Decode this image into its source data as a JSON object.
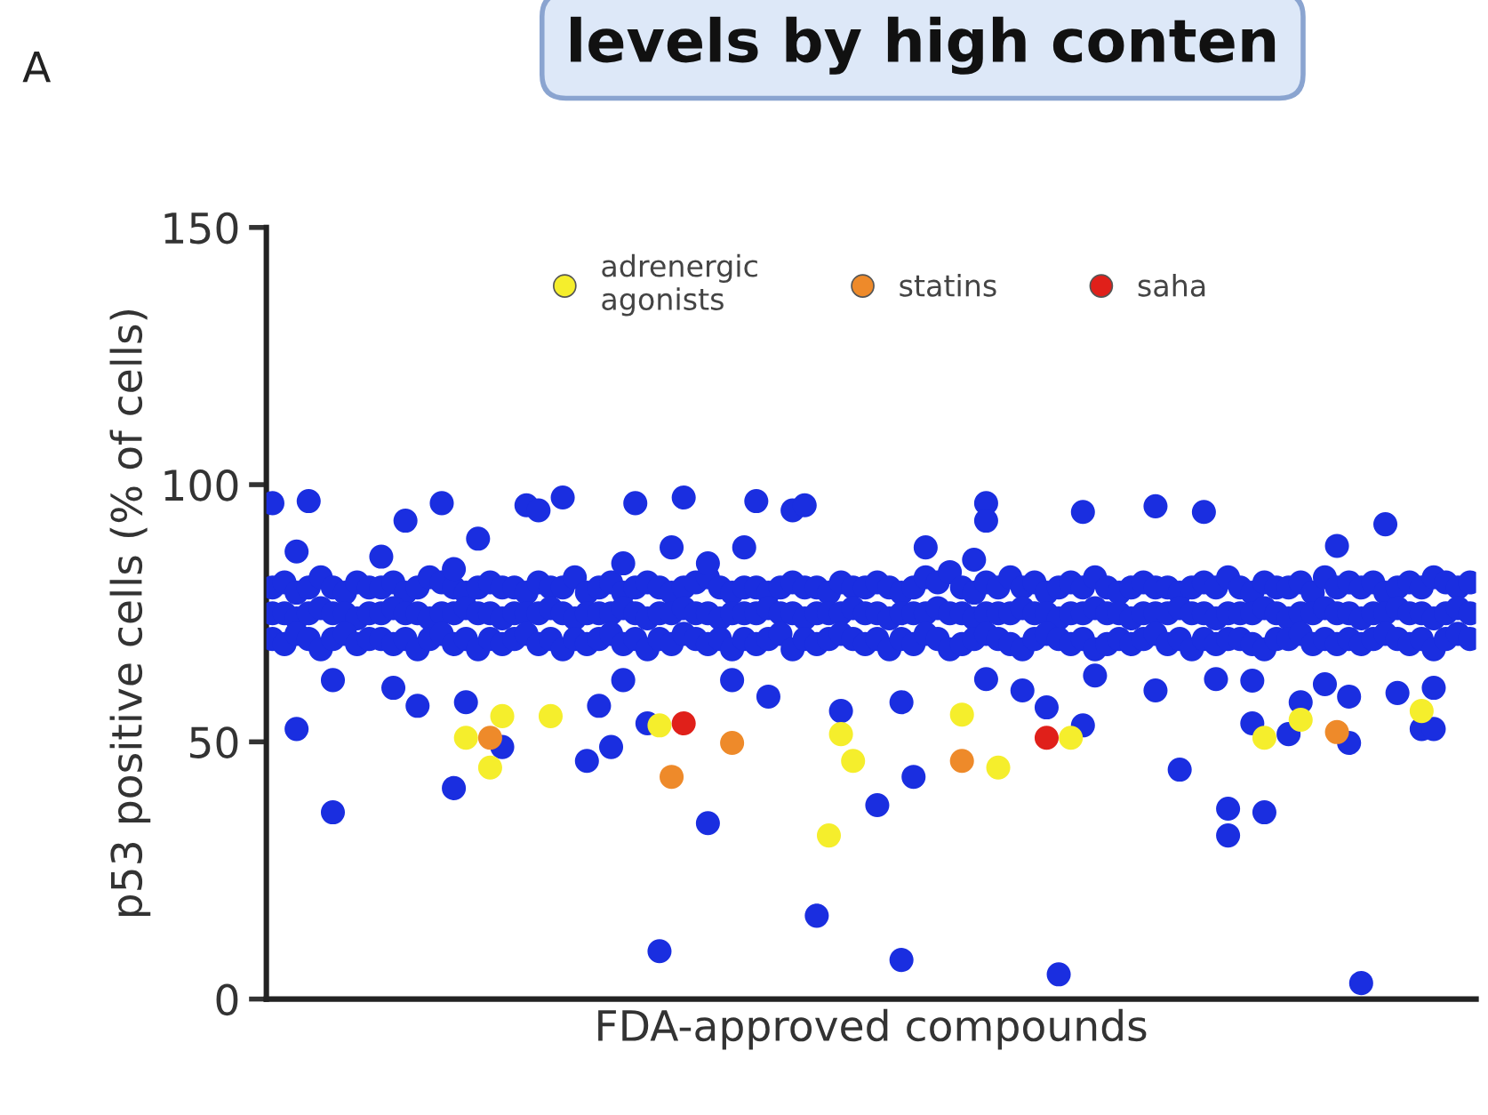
{
  "chart_data": {
    "type": "scatter",
    "title": "levels by high conten",
    "annotations": [
      "A"
    ],
    "xlabel": "FDA-approved compounds",
    "ylabel": "p53 positive cells (% of cells)",
    "categories": [
      null,
      null,
      null,
      null,
      null,
      null,
      null,
      null,
      null,
      null,
      null,
      null,
      null,
      null,
      null,
      null,
      null,
      null,
      null,
      null,
      null,
      null,
      null,
      null,
      null,
      null,
      null,
      null,
      null,
      null,
      null,
      null,
      null,
      null,
      null,
      null,
      null,
      null,
      null,
      null,
      null,
      null,
      null,
      null,
      null,
      null,
      null,
      null,
      null,
      null,
      null,
      null,
      null,
      null,
      null,
      null,
      null,
      null,
      null,
      null,
      null,
      null,
      null,
      null,
      null,
      null,
      null,
      null,
      null,
      null,
      null,
      null,
      null,
      null,
      null,
      null,
      null,
      null,
      null,
      null,
      null,
      null,
      null,
      null,
      null,
      null,
      null,
      null,
      null,
      null,
      null,
      null,
      null,
      null,
      null,
      null,
      null,
      null,
      null,
      null
    ],
    "ylim": [
      0,
      150
    ],
    "yticks": [
      0,
      50,
      100,
      150
    ],
    "tick_labels": "y",
    "grid": false,
    "legend": "top",
    "marker": "circle",
    "series": [
      {
        "color": "#1a2ee0",
        "values": [
          80,
          81,
          79,
          80,
          82,
          80,
          79,
          81,
          80,
          80,
          81,
          79,
          80,
          82,
          81,
          80,
          79,
          80,
          81,
          80,
          80,
          79,
          81,
          80,
          80,
          82,
          79,
          80,
          81,
          79,
          80,
          81,
          80,
          79,
          80,
          81,
          82,
          80,
          79,
          80,
          80,
          79,
          80,
          81,
          80,
          80,
          79,
          81,
          80,
          80,
          81,
          80,
          79,
          80,
          82,
          81,
          83,
          80,
          79,
          81,
          80,
          82,
          80,
          81,
          79,
          80,
          81,
          80,
          82,
          80,
          79,
          80,
          81,
          80,
          80,
          79,
          80,
          81,
          80,
          82,
          80,
          79,
          81,
          80,
          80,
          81,
          79,
          82,
          80,
          81,
          80,
          81,
          79,
          80,
          81,
          80,
          82,
          81,
          80,
          81
        ]
      },
      {
        "color": "#1a2ee0",
        "values": [
          75,
          75,
          74,
          75,
          76,
          75,
          75,
          74,
          75,
          75,
          76,
          75,
          75,
          74,
          75,
          75,
          76,
          75,
          75,
          74,
          75,
          75,
          75,
          76,
          75,
          74,
          75,
          75,
          75,
          76,
          75,
          74,
          75,
          75,
          76,
          75,
          75,
          74,
          75,
          75,
          75,
          76,
          75,
          75,
          74,
          75,
          75,
          75,
          76,
          75,
          75,
          74,
          75,
          75,
          75,
          76,
          75,
          75,
          74,
          75,
          75,
          75,
          76,
          75,
          75,
          74,
          75,
          75,
          76,
          75,
          75,
          74,
          75,
          75,
          75,
          76,
          75,
          75,
          74,
          75,
          75,
          75,
          76,
          75,
          74,
          75,
          75,
          76,
          75,
          75,
          74,
          75,
          75,
          76,
          75,
          75,
          74,
          75,
          76,
          75
        ]
      },
      {
        "color": "#1a2ee0",
        "values": [
          70,
          69,
          71,
          70,
          68,
          70,
          71,
          69,
          70,
          70,
          69,
          70,
          68,
          70,
          71,
          69,
          70,
          68,
          70,
          69,
          70,
          71,
          69,
          70,
          68,
          70,
          69,
          70,
          71,
          69,
          70,
          68,
          70,
          69,
          71,
          70,
          69,
          70,
          68,
          70,
          69,
          70,
          71,
          68,
          70,
          69,
          70,
          71,
          70,
          69,
          70,
          68,
          70,
          69,
          71,
          70,
          68,
          69,
          70,
          71,
          70,
          69,
          68,
          70,
          71,
          70,
          69,
          70,
          68,
          69,
          70,
          69,
          70,
          71,
          69,
          70,
          68,
          70,
          69,
          70,
          70,
          69,
          68,
          70,
          70,
          71,
          69,
          70,
          69,
          70,
          69,
          70,
          71,
          70,
          69,
          70,
          68,
          70,
          71,
          70
        ]
      },
      {
        "color": "#1a2ee0",
        "values": [
          96.4,
          null,
          87,
          96.8,
          null,
          null,
          null,
          null,
          null,
          86,
          null,
          93,
          null,
          null,
          96.4,
          83.6,
          null,
          89.5,
          null,
          null,
          null,
          96,
          95,
          null,
          97.5,
          null,
          null,
          null,
          null,
          84.7,
          96.4,
          null,
          null,
          87.8,
          97.5,
          null,
          84.7,
          null,
          null,
          87.8,
          96.8,
          null,
          null,
          95,
          96,
          null,
          null,
          null,
          null,
          null,
          null,
          null,
          null,
          null,
          87.8,
          null,
          null,
          null,
          85.4,
          96.4,
          null,
          null,
          null,
          null,
          null,
          null,
          null,
          94.7,
          null,
          null,
          null,
          null,
          null,
          95.8,
          null,
          null,
          null,
          94.7,
          null,
          null,
          null,
          null,
          null,
          null,
          null,
          null,
          null,
          null,
          88.1,
          null,
          null,
          null,
          92.3,
          null,
          null,
          null,
          null,
          null,
          null,
          null
        ]
      },
      {
        "color": "#1a2ee0",
        "values": [
          null,
          null,
          52.5,
          null,
          null,
          62,
          null,
          null,
          null,
          null,
          60.5,
          null,
          57,
          null,
          null,
          41,
          57.7,
          null,
          null,
          49,
          null,
          null,
          null,
          null,
          null,
          null,
          46.3,
          null,
          49,
          62,
          null,
          53.6,
          9.3,
          null,
          null,
          null,
          34.2,
          null,
          62,
          null,
          null,
          58.8,
          null,
          null,
          null,
          16.2,
          null,
          56,
          null,
          null,
          37.7,
          null,
          57.7,
          43.2,
          null,
          null,
          null,
          null,
          null,
          62.2,
          null,
          null,
          60,
          null,
          56.7,
          4.8,
          null,
          53.2,
          62.9,
          null,
          null,
          null,
          null,
          60,
          null,
          44.6,
          null,
          null,
          62.2,
          37,
          null,
          61.9,
          36.3,
          null,
          51.5,
          57.7,
          null,
          61.2,
          null,
          58.8,
          3.1,
          null,
          null,
          59.5,
          null,
          52.5,
          52.5,
          null,
          null,
          null
        ]
      },
      {
        "color": "#1a2ee0",
        "values": [
          null,
          null,
          null,
          null,
          null,
          36.3,
          null,
          null,
          null,
          null,
          null,
          null,
          null,
          null,
          null,
          null,
          null,
          null,
          null,
          null,
          null,
          null,
          null,
          null,
          null,
          null,
          null,
          57,
          null,
          null,
          null,
          null,
          null,
          null,
          null,
          null,
          null,
          null,
          null,
          null,
          null,
          null,
          null,
          null,
          null,
          null,
          null,
          null,
          null,
          null,
          null,
          null,
          7.6,
          null,
          null,
          null,
          null,
          null,
          null,
          93,
          null,
          null,
          null,
          null,
          null,
          null,
          null,
          null,
          null,
          null,
          null,
          null,
          null,
          null,
          null,
          null,
          null,
          null,
          null,
          31.8,
          null,
          53.6,
          null,
          null,
          null,
          null,
          null,
          null,
          null,
          49.8,
          null,
          null,
          null,
          null,
          null,
          null,
          60.5,
          null,
          null,
          null
        ]
      },
      {
        "name": "adrenergic\nagonists",
        "color": "#f5ee2c",
        "values": [
          null,
          null,
          null,
          null,
          null,
          null,
          null,
          null,
          null,
          null,
          null,
          null,
          null,
          null,
          null,
          null,
          50.8,
          null,
          45,
          55,
          null,
          null,
          null,
          55,
          null,
          null,
          null,
          null,
          null,
          null,
          null,
          null,
          53.2,
          null,
          null,
          null,
          null,
          null,
          null,
          null,
          null,
          null,
          null,
          null,
          null,
          null,
          31.8,
          51.5,
          46.3,
          null,
          null,
          null,
          null,
          null,
          null,
          null,
          null,
          55.3,
          null,
          null,
          45,
          null,
          null,
          null,
          null,
          null,
          50.8,
          null,
          null,
          null,
          null,
          null,
          null,
          null,
          null,
          null,
          null,
          null,
          null,
          null,
          null,
          null,
          50.8,
          null,
          null,
          54.3,
          null,
          null,
          null,
          null,
          null,
          null,
          null,
          null,
          null,
          56,
          null,
          null,
          null,
          null
        ]
      },
      {
        "name": "statins",
        "color": "#ee8a2a",
        "values": [
          null,
          null,
          null,
          null,
          null,
          null,
          null,
          null,
          null,
          null,
          null,
          null,
          null,
          null,
          null,
          null,
          null,
          null,
          50.8,
          null,
          null,
          null,
          null,
          null,
          null,
          null,
          null,
          null,
          null,
          null,
          null,
          null,
          null,
          43.2,
          null,
          null,
          null,
          null,
          49.8,
          null,
          null,
          null,
          null,
          null,
          null,
          null,
          null,
          null,
          null,
          null,
          null,
          null,
          null,
          null,
          null,
          null,
          null,
          46.3,
          null,
          null,
          null,
          null,
          null,
          null,
          null,
          null,
          null,
          null,
          null,
          null,
          null,
          null,
          null,
          null,
          null,
          null,
          null,
          null,
          null,
          null,
          null,
          null,
          null,
          null,
          null,
          null,
          null,
          null,
          51.9,
          null,
          null,
          null,
          null,
          null,
          null,
          null,
          null,
          null,
          null,
          null
        ]
      },
      {
        "name": "saha",
        "color": "#e0201a",
        "values": [
          null,
          null,
          null,
          null,
          null,
          null,
          null,
          null,
          null,
          null,
          null,
          null,
          null,
          null,
          null,
          null,
          null,
          null,
          null,
          null,
          null,
          null,
          null,
          null,
          null,
          null,
          null,
          null,
          null,
          null,
          null,
          null,
          null,
          null,
          53.6,
          null,
          null,
          null,
          null,
          null,
          null,
          null,
          null,
          null,
          null,
          null,
          null,
          null,
          null,
          null,
          null,
          null,
          null,
          null,
          null,
          null,
          null,
          null,
          null,
          null,
          null,
          null,
          null,
          null,
          50.8,
          null,
          null,
          null,
          null,
          null,
          null,
          null,
          null,
          null,
          null,
          null,
          null,
          null,
          null,
          null,
          null,
          null,
          null,
          null,
          null,
          null,
          null,
          null,
          null,
          null,
          null,
          null,
          null,
          null,
          null,
          null,
          null,
          null,
          null,
          null
        ]
      }
    ]
  }
}
